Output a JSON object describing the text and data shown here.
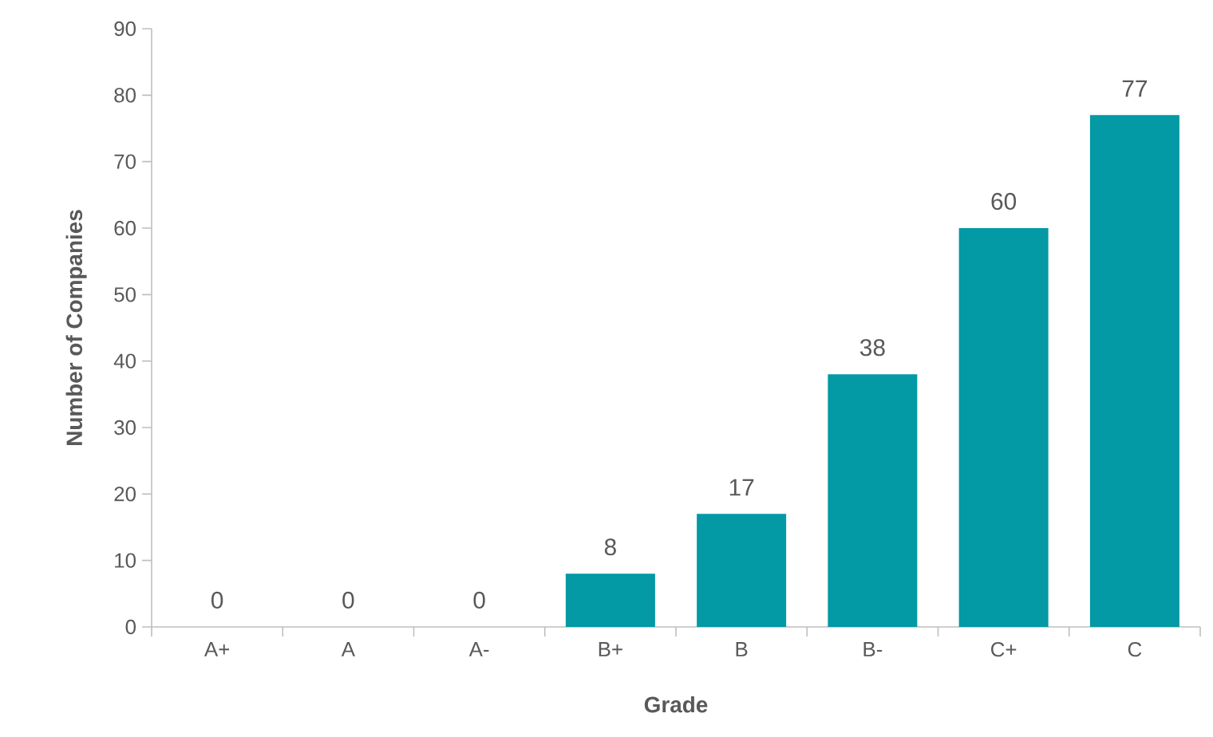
{
  "chart_data": {
    "type": "bar",
    "xlabel": "Grade",
    "ylabel": "Number of Companies",
    "categories": [
      "A+",
      "A",
      "A-",
      "B+",
      "B",
      "B-",
      "C+",
      "C"
    ],
    "values": [
      0,
      0,
      0,
      8,
      17,
      38,
      60,
      77
    ],
    "color": "#0399a5",
    "ylim": [
      0,
      90
    ],
    "yticks": [
      0,
      10,
      20,
      30,
      40,
      50,
      60,
      70,
      80,
      90
    ],
    "data_labels": true,
    "grid": false
  }
}
